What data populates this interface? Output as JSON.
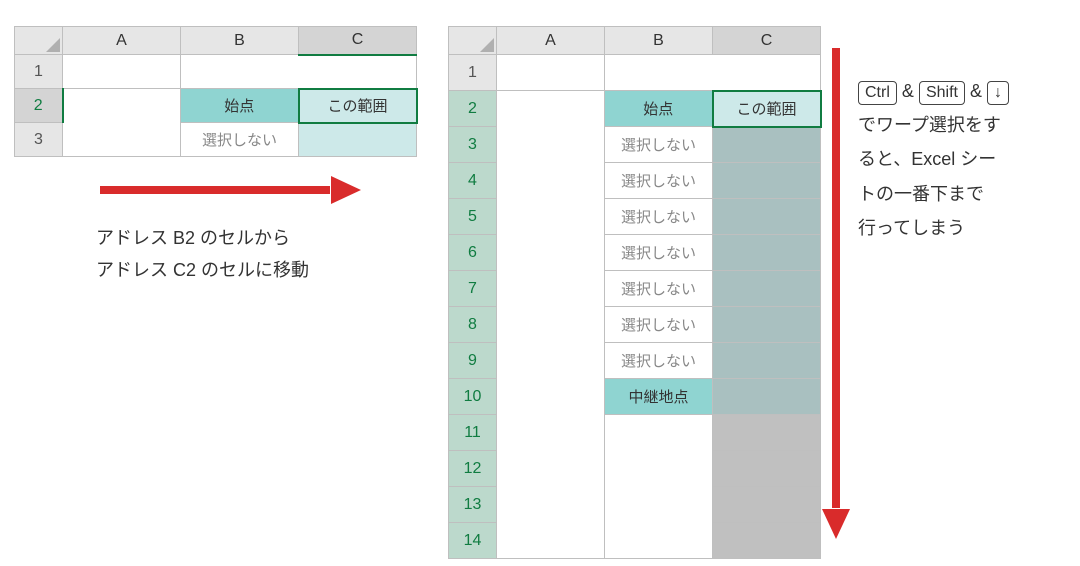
{
  "left": {
    "cols": [
      "A",
      "B",
      "C"
    ],
    "row1": "1",
    "row2": "2",
    "row3": "3",
    "b2": "始点",
    "c2": "この範囲",
    "b3": "選択しない"
  },
  "right": {
    "cols": [
      "A",
      "B",
      "C"
    ],
    "rows": [
      "1",
      "2",
      "3",
      "4",
      "5",
      "6",
      "7",
      "8",
      "9",
      "10",
      "11",
      "12",
      "13",
      "14"
    ],
    "b2": "始点",
    "c2": "この範囲",
    "notsel": "選択しない",
    "b10": "中継地点"
  },
  "cap1_l1": "アドレス B2 のセルから",
  "cap1_l2": "アドレス C2 のセルに移動",
  "keys": {
    "ctrl": "Ctrl",
    "shift": "Shift",
    "down": "↓",
    "amp": "&"
  },
  "cap2_l2": "でワープ選択をす",
  "cap2_l3": "ると、Excel シー",
  "cap2_l4": "トの一番下まで",
  "cap2_l5": "行ってしまう"
}
